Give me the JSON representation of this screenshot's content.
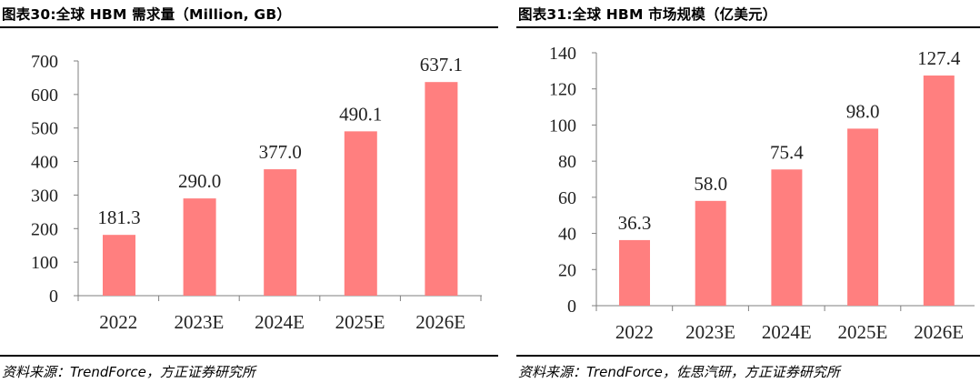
{
  "colors": {
    "bar": "#ff7f7f",
    "axis": "#7f7f7f",
    "rule": "#000000"
  },
  "chart_data": [
    {
      "type": "bar",
      "title": "图表30:全球 HBM 需求量（Million, GB）",
      "categories": [
        "2022",
        "2023E",
        "2024E",
        "2025E",
        "2026E"
      ],
      "values": [
        181.3,
        290.0,
        377.0,
        490.1,
        637.1
      ],
      "data_labels": [
        "181.3",
        "290.0",
        "377.0",
        "490.1",
        "637.1"
      ],
      "ylim": [
        0,
        700
      ],
      "yticks": [
        0,
        100,
        200,
        300,
        400,
        500,
        600,
        700
      ],
      "xlabel": "",
      "ylabel": "",
      "grid": false,
      "legend": "none",
      "source": "资料来源：TrendForce，方正证券研究所"
    },
    {
      "type": "bar",
      "title": "图表31:全球 HBM 市场规模（亿美元）",
      "categories": [
        "2022",
        "2023E",
        "2024E",
        "2025E",
        "2026E"
      ],
      "values": [
        36.3,
        58.0,
        75.4,
        98.0,
        127.4
      ],
      "data_labels": [
        "36.3",
        "58.0",
        "75.4",
        "98.0",
        "127.4"
      ],
      "ylim": [
        0,
        140
      ],
      "yticks": [
        0,
        20,
        40,
        60,
        80,
        100,
        120,
        140
      ],
      "xlabel": "",
      "ylabel": "",
      "grid": false,
      "legend": "none",
      "source": "资料来源：TrendForce，佐思汽研，方正证券研究所"
    }
  ]
}
